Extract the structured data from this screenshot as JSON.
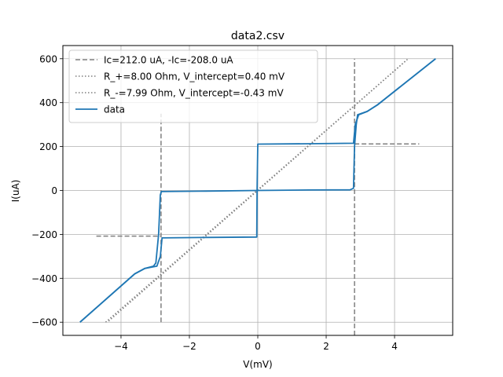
{
  "chart_data": {
    "type": "line",
    "title": "data2.csv",
    "xlabel": "V(mV)",
    "ylabel": "I(uA)",
    "xlim": [
      -5.7,
      5.7
    ],
    "ylim": [
      -660,
      660
    ],
    "xticks": [
      -4,
      -2,
      0,
      2,
      4
    ],
    "xtick_labels": [
      "−4",
      "−2",
      "0",
      "2",
      "4"
    ],
    "yticks": [
      -600,
      -400,
      -200,
      0,
      200,
      400,
      600
    ],
    "ytick_labels": [
      "−600",
      "−400",
      "−200",
      "0",
      "200",
      "400",
      "600"
    ],
    "grid": true,
    "legend_position": "top-left",
    "colors": {
      "data": "#1f77b4",
      "reference": "#7f7f7f",
      "grid": "#b0b0b0"
    },
    "series": [
      {
        "name": "Ic=212.0 uA, -Ic=-208.0 uA",
        "style": "dashed",
        "segments": [
          [
            [
              2.83,
              -660
            ],
            [
              2.83,
              600
            ]
          ],
          [
            [
              -2.83,
              -600
            ],
            [
              -2.83,
              350
            ]
          ],
          [
            [
              2.83,
              212
            ],
            [
              4.72,
              212
            ]
          ],
          [
            [
              -4.72,
              -208
            ],
            [
              -2.83,
              -208
            ]
          ]
        ]
      },
      {
        "name": "R_+=8.00 Ohm, V_intercept=0.40 mV",
        "style": "dotted",
        "x": [
          -4.36,
          4.4
        ],
        "y": [
          -595,
          600
        ]
      },
      {
        "name": "R_-=7.99 Ohm, V_intercept=-0.43 mV",
        "style": "dotted",
        "x": [
          -4.45,
          4.36
        ],
        "y": [
          -600,
          595
        ]
      },
      {
        "name": "data",
        "style": "solid",
        "segments": [
          [
            [
              -5.2,
              -600
            ],
            [
              -3.6,
              -380
            ],
            [
              -3.3,
              -355
            ],
            [
              -3.05,
              -345
            ],
            [
              -2.98,
              -330
            ],
            [
              -2.9,
              -200
            ],
            [
              -2.85,
              -20
            ],
            [
              -2.82,
              -5
            ],
            [
              -1.5,
              -3
            ],
            [
              0,
              0
            ],
            [
              1.5,
              2
            ],
            [
              2.7,
              3
            ],
            [
              2.8,
              10
            ],
            [
              2.83,
              200
            ],
            [
              2.88,
              300
            ],
            [
              2.92,
              345
            ],
            [
              3.2,
              360
            ],
            [
              3.5,
              390
            ],
            [
              5.2,
              600
            ]
          ],
          [
            [
              5.2,
              600
            ],
            [
              3.5,
              390
            ],
            [
              3.2,
              360
            ],
            [
              2.95,
              345
            ],
            [
              2.85,
              300
            ],
            [
              2.8,
              215
            ],
            [
              1.5,
              213
            ],
            [
              0,
              211
            ],
            [
              -0.02,
              0
            ],
            [
              -0.03,
              -212
            ],
            [
              -1.5,
              -214
            ],
            [
              -2.8,
              -216
            ],
            [
              -2.85,
              -300
            ],
            [
              -2.95,
              -345
            ],
            [
              -3.3,
              -355
            ],
            [
              -3.6,
              -380
            ],
            [
              -5.2,
              -600
            ]
          ]
        ]
      }
    ]
  }
}
